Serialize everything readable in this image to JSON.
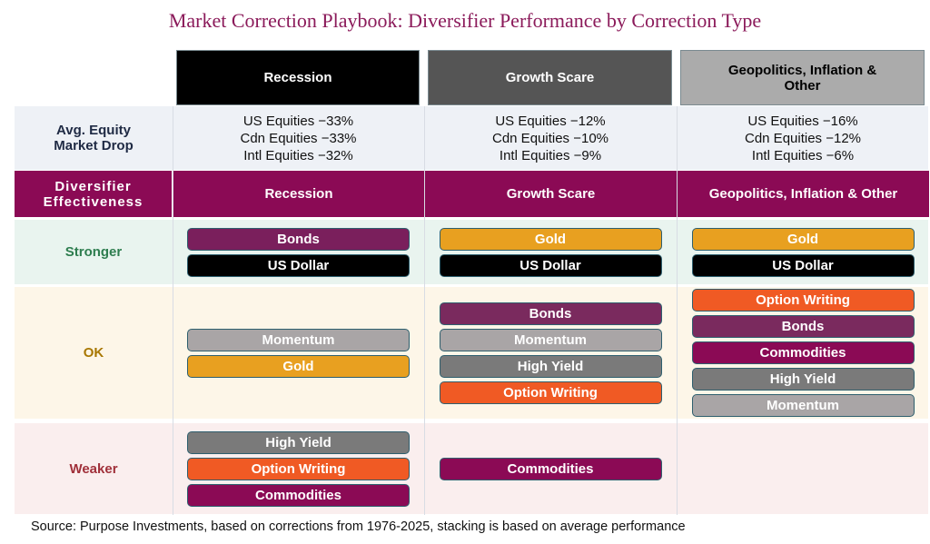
{
  "title": "Market Correction Playbook: Diversifier Performance by Correction Type",
  "header": {
    "columns": [
      {
        "label": "Recession",
        "color": "#000000",
        "text_color": "#ffffff"
      },
      {
        "label": "Growth Scare",
        "color": "#555555",
        "text_color": "#ffffff"
      },
      {
        "label": "Geopolitics, Inflation & Other",
        "color": "#ababab",
        "text_color": "#000000"
      }
    ]
  },
  "drop_row": {
    "label": "Avg. Equity Market Drop",
    "cells": [
      [
        "US Equities −33%",
        "Cdn Equities −33%",
        "Intl Equities −32%"
      ],
      [
        "US Equities −12%",
        "Cdn Equities −10%",
        "Intl Equities −9%"
      ],
      [
        "US Equities −16%",
        "Cdn Equities −12%",
        "Intl Equities −6%"
      ]
    ]
  },
  "effect_row": {
    "label": "Diversifier Effectiveness",
    "columns": [
      "Recession",
      "Growth Scare",
      "Geopolitics, Inflation & Other"
    ]
  },
  "tiers": [
    {
      "label": "Stronger",
      "label_color": "#2e7d4f",
      "background": "#e9f4ef",
      "cells": [
        [
          {
            "label": "Bonds",
            "color": "#7a1f5c"
          },
          {
            "label": "US Dollar",
            "color": "#000000"
          }
        ],
        [
          {
            "label": "Gold",
            "color": "#e8a020"
          },
          {
            "label": "US Dollar",
            "color": "#000000"
          }
        ],
        [
          {
            "label": "Gold",
            "color": "#e8a020"
          },
          {
            "label": "US Dollar",
            "color": "#000000"
          }
        ]
      ]
    },
    {
      "label": "OK",
      "label_color": "#a87700",
      "background": "#fdf6e8",
      "cells": [
        [
          {
            "label": "Momentum",
            "color": "#a9a5a6"
          },
          {
            "label": "Gold",
            "color": "#e8a020"
          }
        ],
        [
          {
            "label": "Bonds",
            "color": "#7a2a5e"
          },
          {
            "label": "Momentum",
            "color": "#a9a5a6"
          },
          {
            "label": "High Yield",
            "color": "#7a7a7a"
          },
          {
            "label": "Option Writing",
            "color": "#f05a24"
          }
        ],
        [
          {
            "label": "Option Writing",
            "color": "#f05a24"
          },
          {
            "label": "Bonds",
            "color": "#7a2a5e"
          },
          {
            "label": "Commodities",
            "color": "#8b0a55"
          },
          {
            "label": "High Yield",
            "color": "#7a7a7a"
          },
          {
            "label": "Momentum",
            "color": "#a9a5a6"
          }
        ]
      ]
    },
    {
      "label": "Weaker",
      "label_color": "#a0303a",
      "background": "#faeeee",
      "cells": [
        [
          {
            "label": "High Yield",
            "color": "#7a7a7a"
          },
          {
            "label": "Option Writing",
            "color": "#f05a24"
          },
          {
            "label": "Commodities",
            "color": "#8b0a55"
          }
        ],
        [
          {
            "label": "Commodities",
            "color": "#8b0a55"
          }
        ],
        []
      ]
    }
  ],
  "source": "Source: Purpose Investments, based on corrections from 1976-2025, stacking is based on average performance"
}
